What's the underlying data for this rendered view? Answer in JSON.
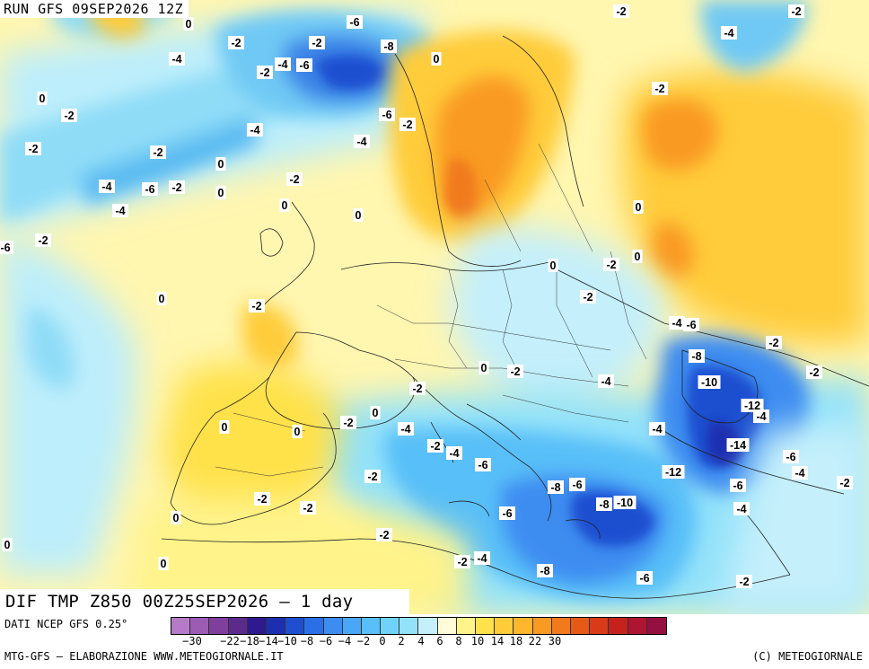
{
  "header": {
    "run_label": "RUN GFS 09SEP2026 12Z"
  },
  "title": "DIF TMP Z850 00Z25SEP2026 – 1 day",
  "footer": {
    "source": "DATI NCEP GFS 0.25°",
    "credit_left": "MTG-GFS – ELABORAZIONE WWW.METEOGIORNALE.IT",
    "credit_right": "(C) METEOGIORNALE"
  },
  "legend": {
    "tick_labels": [
      "−30",
      "−22",
      "−18",
      "−14",
      "−10",
      "−8",
      "−6",
      "−4",
      "−2",
      "0",
      "2",
      "4",
      "6",
      "8",
      "10",
      "14",
      "18",
      "22",
      "30"
    ],
    "colors": [
      "#b57ac8",
      "#9c5cb4",
      "#7f3f9c",
      "#5c2a8a",
      "#2e1a8e",
      "#1d2fb0",
      "#1f4fd0",
      "#2a6fe6",
      "#3d8cf0",
      "#4aa6f6",
      "#58bff8",
      "#6fd3f9",
      "#93e2fa",
      "#c4effb",
      "#fffbd8",
      "#fff38a",
      "#ffe14a",
      "#ffcc3a",
      "#ffb52c",
      "#f99a24",
      "#f07a1c",
      "#e65a18",
      "#d83a1a",
      "#c5221e",
      "#ad1530",
      "#951040"
    ]
  },
  "map": {
    "contour_labels": [
      "0",
      "-2",
      "-4",
      "-6",
      "-8",
      "-2",
      "-4",
      "-6",
      "0",
      "-2",
      "-4",
      "-6",
      "-2",
      "0",
      "-2",
      "-2",
      "-2",
      "-4",
      "-6",
      "-2",
      "0",
      "-4",
      "-4",
      "-2",
      "0",
      "-2",
      "0",
      "0",
      "-6",
      "-2",
      "0",
      "0",
      "-2",
      "-2",
      "0",
      "-2",
      "0",
      "-2",
      "-4",
      "-6",
      "-8",
      "-10",
      "-12",
      "-4",
      "-14",
      "-6",
      "-4",
      "0",
      "-2",
      "-2",
      "0",
      "0",
      "0",
      "-2",
      "-4",
      "-2",
      "-4",
      "-6",
      "-4",
      "-2",
      "-4",
      "-12",
      "-6",
      "-8",
      "-6",
      "-8",
      "-10",
      "-6",
      "-4",
      "-2",
      "-2",
      "-2",
      "0",
      "0",
      "-2",
      "0",
      "-2",
      "-4",
      "-8",
      "-6",
      "-2",
      "-2",
      "-2",
      "-2",
      "-4"
    ]
  }
}
